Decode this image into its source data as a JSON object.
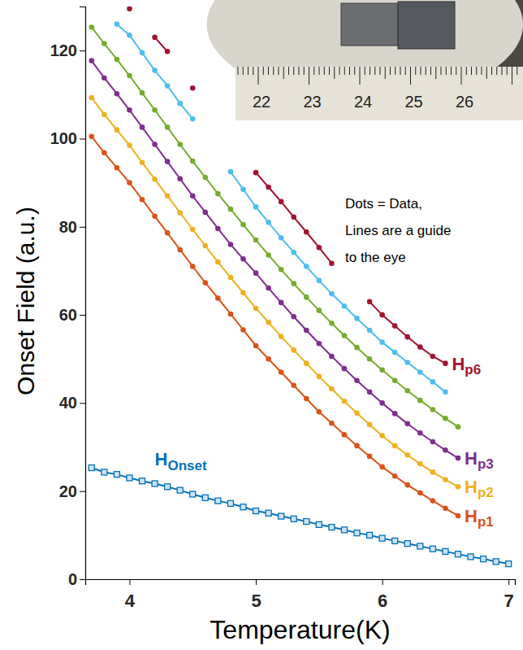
{
  "chart_data": {
    "type": "line",
    "x_label": "Temperature(K)",
    "y_label": "Onset Field (a.u.)",
    "annotations": [
      "Dots = Data,",
      "Lines are a guide",
      "to the eye"
    ],
    "xlim": [
      3.65,
      7.05
    ],
    "xticks": [
      4,
      5,
      6,
      7
    ],
    "ylim": [
      0,
      130
    ],
    "yticks": [
      0,
      20,
      40,
      60,
      80,
      100,
      120
    ],
    "x": [
      3.7,
      3.8,
      3.9,
      4.0,
      4.1,
      4.2,
      4.3,
      4.4,
      4.5,
      4.6,
      4.7,
      4.8,
      4.9,
      5.0,
      5.1,
      5.2,
      5.3,
      5.4,
      5.5,
      5.6,
      5.7,
      5.8,
      5.9,
      6.0,
      6.1,
      6.2,
      6.3,
      6.4,
      6.5,
      6.6,
      6.7,
      6.8,
      6.9,
      7.0
    ],
    "series": [
      {
        "name": "HOnset",
        "color": "#0072bd",
        "marker": "square",
        "values": [
          25.3,
          24.3,
          23.8,
          23.0,
          22.3,
          21.7,
          21.0,
          20.2,
          19.3,
          18.5,
          17.8,
          17.2,
          16.4,
          15.5,
          15.0,
          14.3,
          13.7,
          13.1,
          12.4,
          11.8,
          11.2,
          10.5,
          10.0,
          9.3,
          8.7,
          8.1,
          7.5,
          6.9,
          6.3,
          5.7,
          5.1,
          4.6,
          4.0,
          3.5
        ]
      },
      {
        "name": "Hp1",
        "color": "#d95319",
        "marker": "circle",
        "values": [
          100.5,
          96.8,
          93.4,
          90.0,
          86.2,
          82.4,
          78.6,
          74.8,
          71.0,
          67.3,
          63.8,
          60.2,
          56.6,
          53.0,
          50.0,
          47.0,
          44.0,
          41.0,
          38.0,
          35.4,
          32.8,
          30.3,
          27.9,
          25.5,
          23.4,
          21.4,
          19.6,
          17.8,
          16.1,
          14.4,
          null,
          null,
          null,
          null
        ]
      },
      {
        "name": "Hp2",
        "color": "#edb120",
        "marker": "circle",
        "values": [
          109.3,
          105.5,
          102.0,
          98.5,
          94.6,
          90.8,
          87.0,
          83.2,
          79.4,
          75.7,
          72.0,
          68.5,
          65.0,
          61.5,
          58.3,
          55.1,
          52.0,
          49.0,
          46.0,
          43.2,
          40.4,
          37.7,
          35.1,
          32.6,
          30.3,
          28.2,
          26.2,
          24.3,
          22.6,
          21.0,
          null,
          null,
          null,
          null
        ]
      },
      {
        "name": "Hp3",
        "color": "#7e2f8e",
        "marker": "circle",
        "values": [
          117.7,
          113.8,
          110.2,
          106.5,
          102.6,
          98.7,
          94.8,
          90.9,
          87.0,
          83.3,
          79.6,
          76.0,
          72.7,
          69.5,
          66.1,
          62.8,
          59.6,
          56.5,
          53.5,
          50.6,
          47.8,
          45.1,
          42.5,
          40.0,
          37.6,
          35.3,
          33.2,
          31.2,
          29.3,
          27.5,
          null,
          null,
          null,
          null
        ]
      },
      {
        "color": "#77ac30",
        "marker": "circle",
        "values": [
          125.3,
          121.6,
          118.0,
          114.3,
          110.4,
          106.5,
          102.6,
          98.7,
          94.9,
          91.2,
          87.5,
          84.0,
          80.5,
          77.0,
          73.6,
          70.3,
          67.1,
          64.0,
          61.0,
          58.1,
          55.3,
          52.6,
          50.0,
          47.5,
          45.1,
          42.8,
          40.6,
          38.5,
          36.5,
          34.6,
          null,
          null,
          null,
          null
        ]
      },
      {
        "color": "#4dbeee",
        "marker": "circle",
        "values": [
          null,
          null,
          126.0,
          123.5,
          119.5,
          115.5,
          112.0,
          108.0,
          104.5,
          null,
          null,
          92.5,
          88.5,
          84.5,
          81.0,
          77.5,
          74.2,
          71.0,
          67.8,
          64.8,
          62.0,
          59.2,
          56.5,
          53.8,
          51.5,
          49.2,
          47.0,
          44.8,
          42.5,
          null,
          null,
          null,
          null,
          null
        ]
      },
      {
        "name": "Hp6",
        "color": "#a2142f",
        "marker": "circle",
        "values": [
          null,
          null,
          null,
          129.5,
          null,
          123.0,
          119.8,
          null,
          111.5,
          null,
          null,
          null,
          null,
          92.3,
          89.0,
          85.7,
          82.2,
          78.8,
          75.3,
          71.7,
          null,
          null,
          63.0,
          60.0,
          57.5,
          55.0,
          52.7,
          50.6,
          49.0,
          null,
          null,
          null,
          null,
          null
        ]
      }
    ]
  },
  "inset_photo": {
    "ruler_ticks": [
      22,
      23,
      24,
      25,
      26
    ]
  }
}
